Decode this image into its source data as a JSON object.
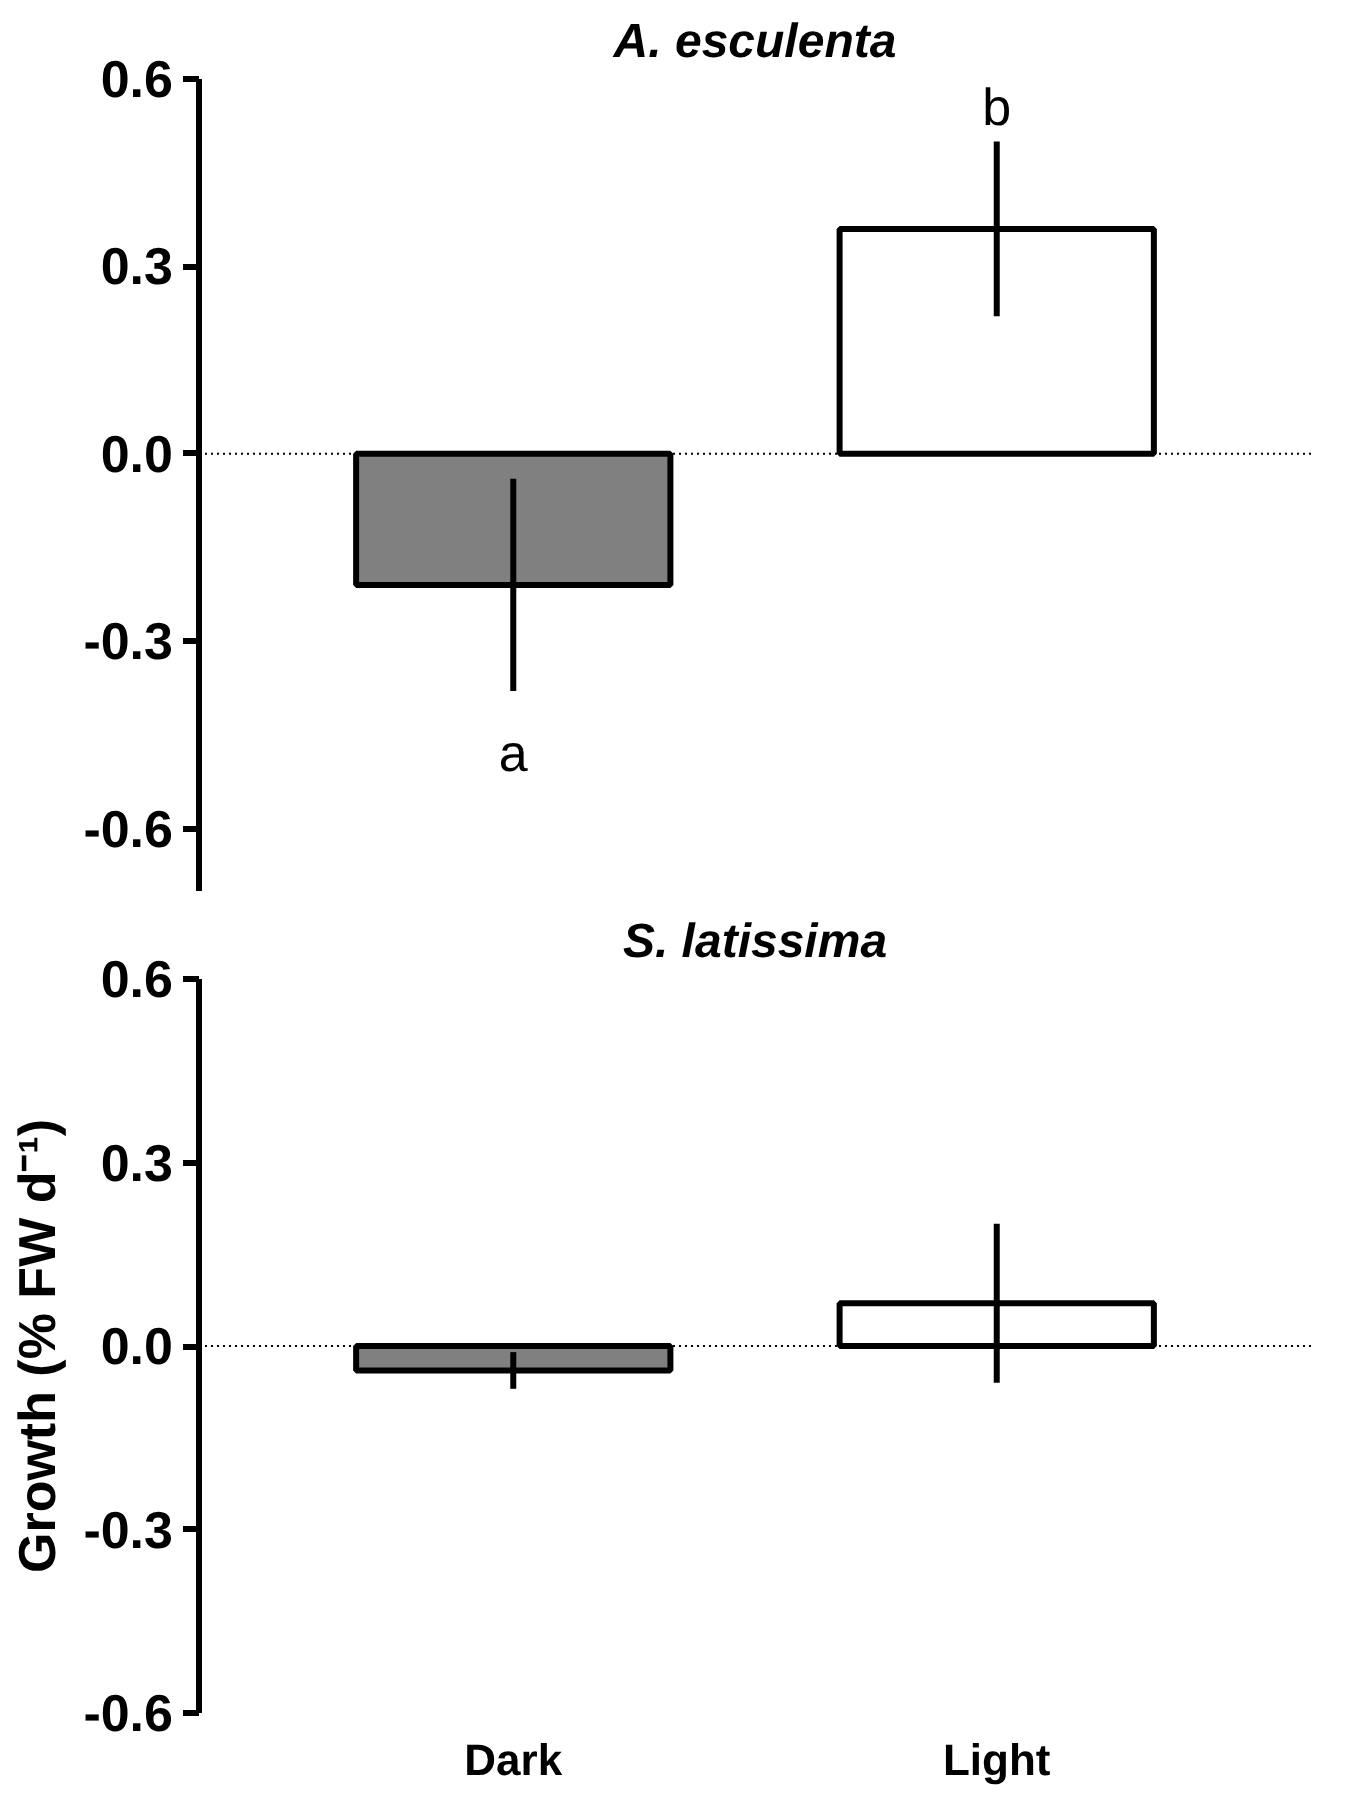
{
  "chart_data": [
    {
      "type": "bar",
      "title": "A. esculenta",
      "categories": [
        null,
        null
      ],
      "values": [
        -0.21,
        0.36
      ],
      "colors": [
        "#808080",
        "#ffffff"
      ],
      "errors": [
        0.17,
        0.14
      ],
      "ylim": [
        -0.7,
        0.6
      ],
      "yticks": [
        0.6,
        0.3,
        {
          "value": 0,
          "label": "0.0"
        },
        -0.3,
        -0.6
      ],
      "tick_labels": "y",
      "grid": false,
      "ref_lines": [
        {
          "axis": "y",
          "value": 0,
          "line_style": "dotted"
        }
      ],
      "annotations": [
        "a",
        "b"
      ]
    },
    {
      "type": "bar",
      "title": "S. latissima",
      "ylabel": "Growth (% FW d⁻¹)",
      "categories": [
        "Dark",
        "Light"
      ],
      "values": [
        -0.04,
        0.07
      ],
      "colors": [
        "#808080",
        "#ffffff"
      ],
      "errors": [
        0.03,
        0.13
      ],
      "ylim": [
        -0.6,
        0.6
      ],
      "yticks": [
        0.6,
        0.3,
        {
          "value": 0,
          "label": "0.0"
        },
        -0.3,
        -0.6
      ],
      "grid": false,
      "ref_lines": [
        {
          "axis": "y",
          "value": 0,
          "line_style": "dotted"
        }
      ]
    }
  ]
}
